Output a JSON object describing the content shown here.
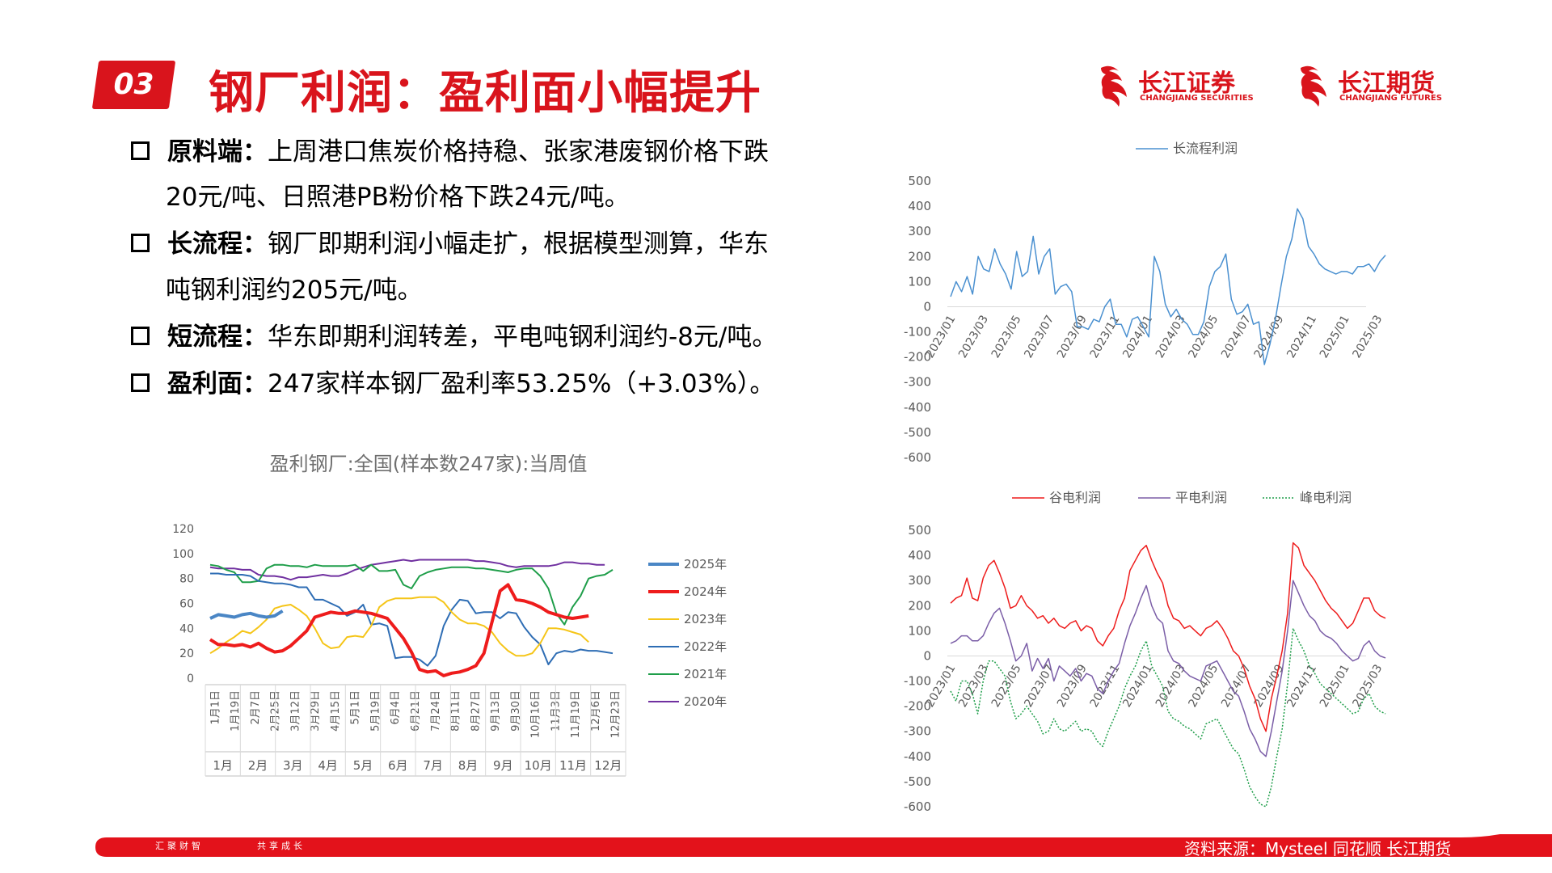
{
  "header": {
    "section_number": "03",
    "title": "钢厂利润：盈利面小幅提升",
    "logos": [
      {
        "cn": "长江证券",
        "en": "CHANGJIANG SECURITIES"
      },
      {
        "cn": "长江期货",
        "en": "CHANGJIANG FUTURES"
      }
    ]
  },
  "bullets": [
    {
      "key": "原料端：",
      "lines": [
        "上周港口焦炭价格持稳、张家港废钢价格下跌",
        "20元/吨、日照港PB粉价格下跌24元/吨。"
      ]
    },
    {
      "key": "长流程：",
      "lines": [
        "钢厂即期利润小幅走扩，根据模型测算，华东",
        "吨钢利润约205元/吨。"
      ]
    },
    {
      "key": "短流程：",
      "lines": [
        "华东即期利润转差，平电吨钢利润约-8元/吨。"
      ]
    },
    {
      "key": "盈利面：",
      "lines": [
        "247家样本钢厂盈利率53.25%（+3.03%）。"
      ]
    }
  ],
  "colors": {
    "brand_red": "#d9141c",
    "footer_red": "#e3121b"
  },
  "footer": {
    "slogan_left": "汇聚财智",
    "slogan_right": "共享成长",
    "source": "资料来源：Mysteel  同花顺   长江期货"
  },
  "chart_data": [
    {
      "id": "profitable-mills",
      "type": "line",
      "title": "盈利钢厂:全国(样本数247家):当周值",
      "ylim": [
        0,
        120
      ],
      "yticks": [
        0,
        20,
        40,
        60,
        80,
        100,
        120
      ],
      "x_tick_labels": [
        "1月1日",
        "1月19日",
        "2月7日",
        "2月25日",
        "3月12日",
        "3月29日",
        "4月15日",
        "5月1日",
        "5月19日",
        "6月4日",
        "6月21日",
        "7月24日",
        "8月11日",
        "8月27日",
        "9月13日",
        "9月30日",
        "10月16日",
        "11月3日",
        "11月19日",
        "12月6日",
        "12月23日"
      ],
      "month_labels": [
        "1月",
        "2月",
        "3月",
        "4月",
        "5月",
        "6月",
        "7月",
        "8月",
        "9月",
        "10月",
        "11月",
        "12月"
      ],
      "legend_position": "right",
      "series": [
        {
          "name": "2025年",
          "color": "#4a86c5",
          "width": 4,
          "values": [
            48,
            51,
            50,
            49,
            51,
            52,
            50,
            49,
            50,
            54
          ]
        },
        {
          "name": "2024年",
          "color": "#ee1c1c",
          "width": 4,
          "values": [
            31,
            27,
            27,
            26,
            27,
            25,
            28,
            24,
            21,
            22,
            26,
            32,
            38,
            49,
            51,
            53,
            52,
            52,
            54,
            53,
            52,
            50,
            48,
            40,
            32,
            21,
            7,
            5,
            6,
            2,
            4,
            5,
            7,
            10,
            20,
            45,
            70,
            75,
            63,
            62,
            60,
            57,
            53,
            51,
            49,
            48,
            49,
            50
          ]
        },
        {
          "name": "2023年",
          "color": "#f5c518",
          "width": 2,
          "values": [
            20,
            24,
            29,
            33,
            38,
            36,
            41,
            47,
            56,
            58,
            59,
            55,
            50,
            40,
            28,
            24,
            25,
            33,
            34,
            33,
            42,
            57,
            62,
            64,
            64,
            64,
            65,
            65,
            65,
            61,
            53,
            47,
            44,
            44,
            42,
            37,
            28,
            22,
            18,
            18,
            20,
            28,
            40,
            40,
            39,
            37,
            35,
            29
          ]
        },
        {
          "name": "2022年",
          "color": "#2e6db4",
          "width": 2,
          "values": [
            84,
            84,
            83,
            83,
            83,
            82,
            78,
            77,
            76,
            76,
            75,
            73,
            73,
            63,
            63,
            60,
            57,
            50,
            53,
            59,
            43,
            44,
            42,
            16,
            17,
            17,
            15,
            10,
            18,
            42,
            55,
            63,
            62,
            52,
            53,
            53,
            48,
            53,
            52,
            41,
            33,
            27,
            11,
            20,
            22,
            21,
            23,
            22,
            22,
            21,
            20
          ]
        },
        {
          "name": "2021年",
          "color": "#1f9e4a",
          "width": 2,
          "values": [
            91,
            90,
            87,
            85,
            77,
            77,
            78,
            88,
            91,
            91,
            90,
            90,
            89,
            91,
            90,
            90,
            90,
            90,
            91,
            86,
            91,
            86,
            86,
            87,
            75,
            72,
            82,
            85,
            87,
            88,
            89,
            89,
            89,
            88,
            88,
            87,
            86,
            85,
            87,
            88,
            88,
            82,
            72,
            52,
            43,
            57,
            66,
            80,
            82,
            83,
            87
          ]
        },
        {
          "name": "2020年",
          "color": "#7030a0",
          "width": 2,
          "values": [
            89,
            88,
            88,
            88,
            87,
            87,
            83,
            82,
            82,
            81,
            79,
            81,
            81,
            82,
            83,
            82,
            82,
            84,
            87,
            89,
            91,
            92,
            93,
            94,
            95,
            94,
            95,
            95,
            95,
            95,
            95,
            95,
            95,
            94,
            94,
            93,
            92,
            90,
            89,
            90,
            90,
            90,
            90,
            91,
            93,
            93,
            92,
            92,
            91,
            91
          ]
        }
      ]
    },
    {
      "id": "long-process-profit",
      "type": "line",
      "title": "",
      "ylim": [
        -600,
        500
      ],
      "yticks": [
        500,
        400,
        300,
        200,
        100,
        0,
        -100,
        -200,
        -300,
        -400,
        -500,
        -600
      ],
      "x_tick_labels": [
        "2023/01",
        "2023/03",
        "2023/05",
        "2023/07",
        "2023/09",
        "2023/11",
        "2024/01",
        "2024/03",
        "2024/05",
        "2024/07",
        "2024/09",
        "2024/11",
        "2025/01",
        "2025/03"
      ],
      "legend_position": "top",
      "series": [
        {
          "name": "长流程利润",
          "color": "#4a90d0",
          "width": 1.5,
          "values": [
            40,
            100,
            60,
            120,
            50,
            200,
            150,
            140,
            230,
            170,
            130,
            70,
            220,
            120,
            140,
            280,
            130,
            200,
            230,
            50,
            80,
            90,
            60,
            -80,
            -80,
            -90,
            -50,
            -60,
            0,
            30,
            -70,
            -70,
            -120,
            -50,
            -40,
            -80,
            -120,
            200,
            140,
            10,
            -40,
            -10,
            -50,
            -70,
            -110,
            -110,
            -60,
            80,
            140,
            160,
            210,
            30,
            -30,
            -20,
            10,
            -70,
            -60,
            -230,
            -150,
            -50,
            80,
            200,
            270,
            390,
            350,
            240,
            210,
            170,
            150,
            140,
            130,
            140,
            140,
            130,
            160,
            160,
            170,
            140,
            180,
            205
          ]
        }
      ]
    },
    {
      "id": "short-process-profit",
      "type": "line",
      "title": "",
      "ylim": [
        -600,
        500
      ],
      "yticks": [
        500,
        400,
        300,
        200,
        100,
        0,
        -100,
        -200,
        -300,
        -400,
        -500,
        -600
      ],
      "x_tick_labels": [
        "2023/01",
        "2023/03",
        "2023/05",
        "2023/07",
        "2023/09",
        "2023/11",
        "2024/01",
        "2024/03",
        "2024/05",
        "2024/07",
        "2024/09",
        "2024/11",
        "2025/01",
        "2025/03"
      ],
      "legend_position": "top",
      "series": [
        {
          "name": "谷电利润",
          "color": "#ee1c1c",
          "width": 1.5,
          "dash": "",
          "values": [
            210,
            230,
            240,
            310,
            230,
            220,
            310,
            360,
            380,
            330,
            270,
            190,
            200,
            240,
            200,
            180,
            150,
            160,
            130,
            150,
            120,
            110,
            130,
            140,
            100,
            120,
            110,
            60,
            40,
            80,
            110,
            180,
            230,
            340,
            380,
            420,
            440,
            380,
            330,
            290,
            200,
            150,
            140,
            110,
            120,
            100,
            80,
            110,
            120,
            140,
            110,
            70,
            20,
            0,
            -50,
            -120,
            -170,
            -250,
            -300,
            -170,
            -80,
            20,
            170,
            450,
            430,
            360,
            330,
            300,
            260,
            220,
            190,
            170,
            140,
            110,
            130,
            180,
            230,
            230,
            180,
            160,
            150
          ]
        },
        {
          "name": "平电利润",
          "color": "#7b5ea7",
          "width": 1.5,
          "dash": "",
          "values": [
            50,
            60,
            80,
            80,
            60,
            60,
            80,
            130,
            170,
            190,
            130,
            60,
            -20,
            0,
            50,
            -60,
            -10,
            -50,
            -10,
            -100,
            -40,
            -60,
            -80,
            -50,
            -100,
            -70,
            -80,
            -130,
            -150,
            -100,
            -60,
            -30,
            50,
            120,
            170,
            230,
            280,
            200,
            150,
            130,
            20,
            -20,
            -30,
            -60,
            -80,
            -90,
            -100,
            -40,
            -30,
            -20,
            -60,
            -100,
            -140,
            -160,
            -220,
            -290,
            -330,
            -380,
            -400,
            -300,
            -180,
            -60,
            100,
            300,
            250,
            200,
            160,
            140,
            100,
            80,
            70,
            50,
            20,
            0,
            -20,
            -10,
            40,
            60,
            20,
            0,
            -8
          ]
        },
        {
          "name": "峰电利润",
          "color": "#1f9e4a",
          "width": 1.5,
          "dash": "2,2",
          "values": [
            -140,
            -180,
            -100,
            -100,
            -150,
            -230,
            -100,
            -20,
            -20,
            -50,
            -80,
            -180,
            -250,
            -230,
            -200,
            -230,
            -260,
            -310,
            -300,
            -250,
            -290,
            -300,
            -280,
            -260,
            -300,
            -290,
            -300,
            -340,
            -360,
            -300,
            -250,
            -200,
            -130,
            -80,
            -40,
            20,
            60,
            -40,
            -80,
            -120,
            -220,
            -250,
            -260,
            -280,
            -290,
            -310,
            -330,
            -270,
            -260,
            -250,
            -290,
            -330,
            -370,
            -390,
            -450,
            -520,
            -560,
            -590,
            -600,
            -520,
            -400,
            -290,
            -110,
            110,
            60,
            20,
            -40,
            -70,
            -110,
            -130,
            -150,
            -170,
            -190,
            -210,
            -230,
            -220,
            -170,
            -150,
            -200,
            -220,
            -230
          ]
        }
      ]
    }
  ]
}
